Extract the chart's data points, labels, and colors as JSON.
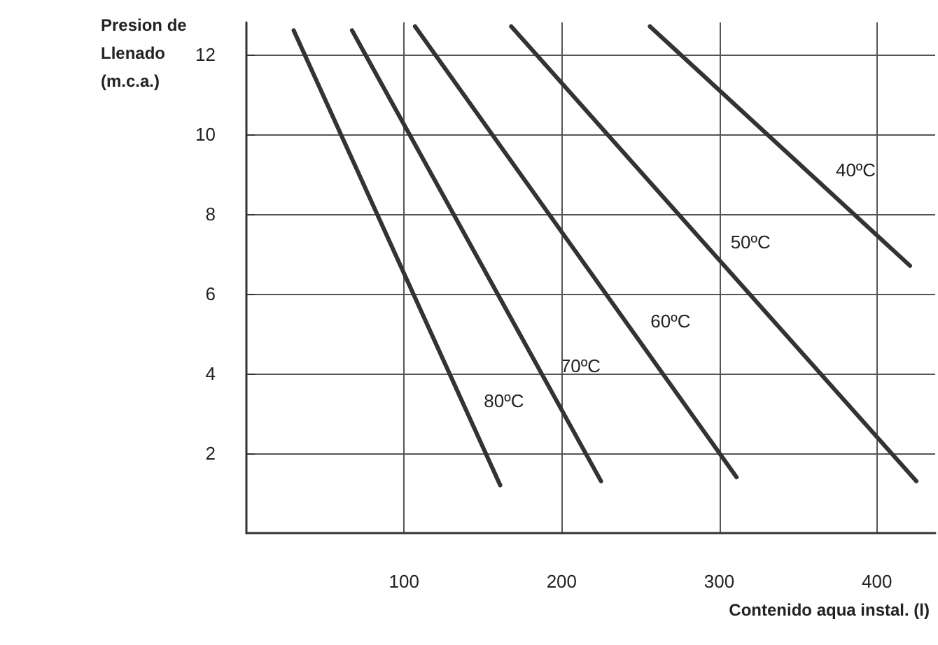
{
  "chart_data": {
    "type": "line",
    "ylabel": "Presion de\nLlenado\n(m.c.a.)",
    "xlabel": "Contenido aqua instal. (l)",
    "series": [
      {
        "name": "80ºC",
        "color": "#333333",
        "x": [
          30,
          161
        ],
        "values": [
          12.6,
          1.2
        ]
      },
      {
        "name": "70ºC",
        "color": "#333333",
        "x": [
          67,
          225
        ],
        "values": [
          12.6,
          1.3
        ]
      },
      {
        "name": "60ºC",
        "color": "#333333",
        "x": [
          107,
          311
        ],
        "values": [
          12.7,
          1.4
        ]
      },
      {
        "name": "50ºC",
        "color": "#333333",
        "x": [
          168,
          425
        ],
        "values": [
          12.7,
          1.3
        ]
      },
      {
        "name": "40ºC",
        "color": "#333333",
        "x": [
          256,
          421
        ],
        "values": [
          12.7,
          6.7
        ]
      }
    ],
    "xlim": [
      0,
      437
    ],
    "xticks": [
      100,
      200,
      300,
      400
    ],
    "ylim": [
      0,
      12.8
    ],
    "yticks": [
      2,
      4,
      6,
      8,
      10,
      12
    ],
    "grid": true,
    "legend": false,
    "marker": "none",
    "line_style": "solid"
  }
}
